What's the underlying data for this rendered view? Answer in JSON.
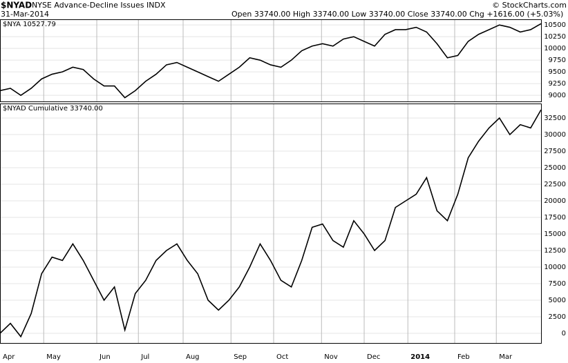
{
  "header": {
    "symbol": "$NYAD",
    "name": "NYSE Advance-Decline Issues INDX",
    "date": "31-Mar-2014",
    "quote": "Open 33740.00  High 33740.00  Low 33740.00  Close 33740.00  Chg +1616.00 (+5.03%)",
    "copyright": "© StockCharts.com"
  },
  "chart_data": [
    {
      "type": "line",
      "title": "$NYA 10527.79",
      "xlim": [
        0,
        52
      ],
      "ylim": [
        8870,
        10620
      ],
      "yticks": [
        9000,
        9250,
        9500,
        9750,
        10000,
        10250,
        10500
      ],
      "series": [
        {
          "color": "#000000",
          "values": [
            9100,
            9150,
            9000,
            9150,
            9350,
            9450,
            9500,
            9600,
            9550,
            9350,
            9200,
            9200,
            8950,
            9100,
            9300,
            9450,
            9650,
            9700,
            9600,
            9500,
            9400,
            9300,
            9450,
            9600,
            9800,
            9750,
            9650,
            9600,
            9750,
            9950,
            10050,
            10100,
            10050,
            10200,
            10250,
            10150,
            10050,
            10300,
            10400,
            10400,
            10450,
            10350,
            10100,
            9800,
            9850,
            10150,
            10300,
            10400,
            10500,
            10450,
            10350,
            10400,
            10528
          ]
        }
      ]
    },
    {
      "type": "line",
      "title": "$NYAD Cumulative 33740.00",
      "xlim": [
        0,
        52
      ],
      "ylim": [
        -1460,
        34690
      ],
      "yticks": [
        0,
        2500,
        5000,
        7500,
        10000,
        12500,
        15000,
        17500,
        20000,
        22500,
        25000,
        27500,
        30000,
        32500
      ],
      "xticks": [
        {
          "value": 0,
          "label": "Apr"
        },
        {
          "value": 4.2,
          "label": "May"
        },
        {
          "value": 9.3,
          "label": "Jun"
        },
        {
          "value": 13.3,
          "label": "Jul"
        },
        {
          "value": 17.6,
          "label": "Aug"
        },
        {
          "value": 22.2,
          "label": "Sep"
        },
        {
          "value": 26.3,
          "label": "Oct"
        },
        {
          "value": 30.9,
          "label": "Nov"
        },
        {
          "value": 35.0,
          "label": "Dec"
        },
        {
          "value": 39.2,
          "label": "2014"
        },
        {
          "value": 43.7,
          "label": "Feb"
        },
        {
          "value": 47.7,
          "label": "Mar"
        }
      ],
      "series": [
        {
          "color": "#000000",
          "values": [
            0,
            1500,
            -500,
            3000,
            9000,
            11500,
            11000,
            13500,
            11000,
            8000,
            5000,
            7000,
            500,
            6000,
            8000,
            11000,
            12500,
            13500,
            11000,
            9000,
            5000,
            3500,
            5000,
            7000,
            10000,
            13500,
            11000,
            8000,
            7000,
            11000,
            16000,
            16500,
            14000,
            13000,
            17000,
            15000,
            12500,
            14000,
            19000,
            20000,
            21000,
            23500,
            18500,
            17000,
            21000,
            26500,
            29000,
            31000,
            32500,
            30000,
            31500,
            31000,
            33740
          ]
        }
      ]
    }
  ]
}
